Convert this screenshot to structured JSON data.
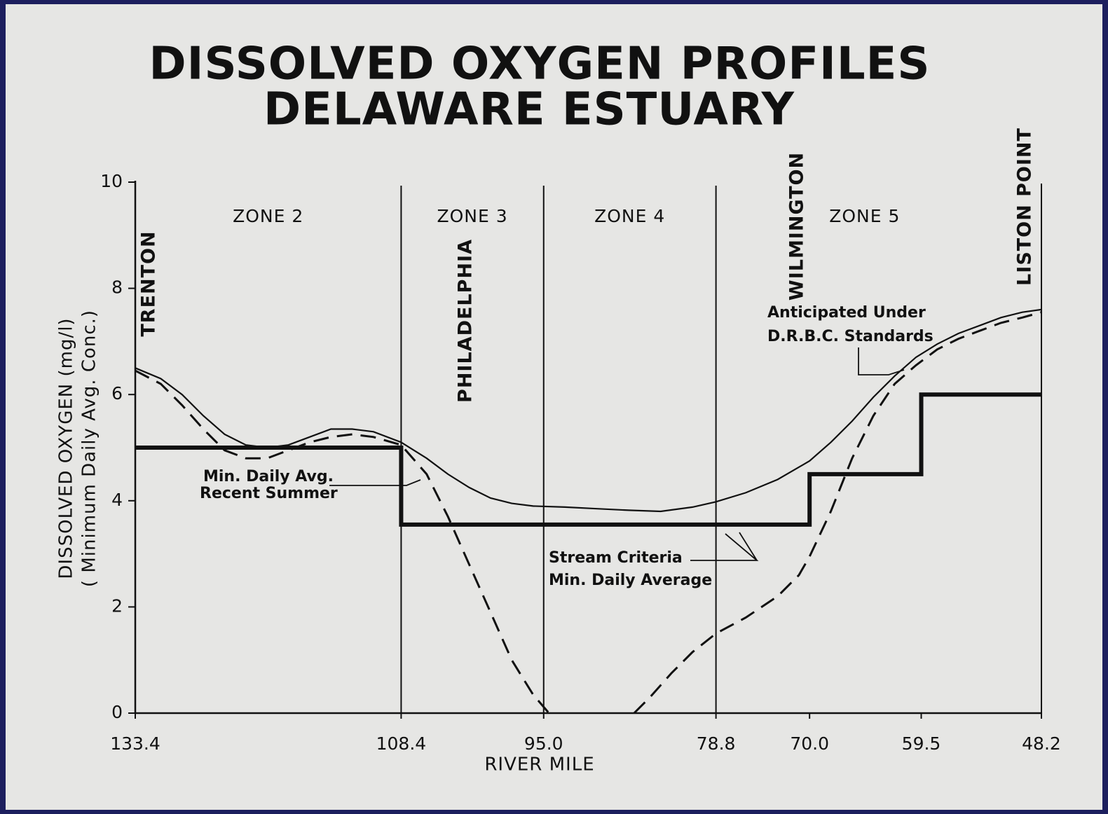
{
  "chart_data": {
    "type": "line",
    "title": [
      "DISSOLVED OXYGEN PROFILES",
      "DELAWARE ESTUARY"
    ],
    "y_label": [
      "DISSOLVED  OXYGEN (mg/l)",
      "( Minimum  Daily  Avg. Conc.)"
    ],
    "x_label": "RIVER MILE",
    "xlim": [
      133.4,
      48.2
    ],
    "xticks": [
      133.4,
      108.4,
      {
        "value": 95,
        "label": "95.0"
      },
      78.8,
      {
        "value": 70,
        "label": "70.0"
      },
      59.5,
      48.2
    ],
    "ylim": [
      0,
      10
    ],
    "yticks": [
      0,
      2,
      4,
      6,
      8,
      10
    ],
    "zone_boundaries": [
      108.4,
      95,
      78.8
    ],
    "zones": [
      "ZONE  2",
      "ZONE  3",
      "ZONE  4",
      "ZONE  5"
    ],
    "places": [
      "TRENTON",
      "PHILADELPHIA",
      "WILMINGTON",
      "LISTON POINT"
    ],
    "series": [
      {
        "name": [
          "Anticipated Under",
          "D.R.B.C. Standards"
        ],
        "color": "#111111",
        "style": "solid",
        "x": [
          133.4,
          131,
          129,
          127,
          125,
          123,
          121,
          119,
          117,
          115,
          113,
          111,
          108.4,
          106,
          104,
          102,
          100,
          98,
          96,
          93,
          90,
          87,
          84,
          81,
          78.8,
          76,
          73,
          70,
          68,
          66,
          64,
          62,
          60,
          58,
          56,
          54,
          52,
          50,
          48.2
        ],
        "values": [
          6.5,
          6.3,
          6.0,
          5.6,
          5.25,
          5.05,
          5.0,
          5.05,
          5.2,
          5.35,
          5.35,
          5.3,
          5.1,
          4.8,
          4.5,
          4.25,
          4.05,
          3.95,
          3.9,
          3.88,
          3.85,
          3.82,
          3.8,
          3.88,
          3.98,
          4.15,
          4.4,
          4.75,
          5.1,
          5.5,
          5.95,
          6.35,
          6.7,
          6.95,
          7.15,
          7.3,
          7.45,
          7.55,
          7.6
        ]
      },
      {
        "name": [
          "Min. Daily Avg.",
          "Recent Summer"
        ],
        "color": "#111111",
        "style": "dashed",
        "x": [
          133.4,
          131,
          129,
          127,
          125,
          123,
          121,
          119,
          117,
          115,
          113,
          111,
          108.4,
          106,
          104,
          102,
          100,
          98,
          96,
          94.5,
          90,
          86.5,
          85,
          83,
          81,
          78.8,
          76,
          73,
          71,
          70,
          68,
          66,
          64,
          62,
          60,
          58,
          56,
          54,
          52,
          50,
          48.2
        ],
        "values": [
          6.45,
          6.2,
          5.8,
          5.35,
          4.95,
          4.8,
          4.8,
          4.95,
          5.1,
          5.2,
          5.25,
          5.2,
          5.05,
          4.5,
          3.7,
          2.8,
          1.9,
          1.0,
          0.35,
          0,
          null,
          0,
          0.3,
          0.75,
          1.15,
          1.5,
          1.8,
          2.2,
          2.6,
          2.95,
          3.8,
          4.8,
          5.6,
          6.2,
          6.55,
          6.85,
          7.05,
          7.2,
          7.35,
          7.45,
          7.55
        ]
      },
      {
        "name": [
          "Stream Criteria",
          "Min. Daily Average"
        ],
        "color": "#111111",
        "style": "bold",
        "x": [
          133.4,
          108.4,
          108.4,
          70,
          70,
          59.5,
          59.5,
          48.2
        ],
        "values": [
          5,
          5,
          3.55,
          3.55,
          4.5,
          4.5,
          6,
          6
        ]
      }
    ]
  }
}
